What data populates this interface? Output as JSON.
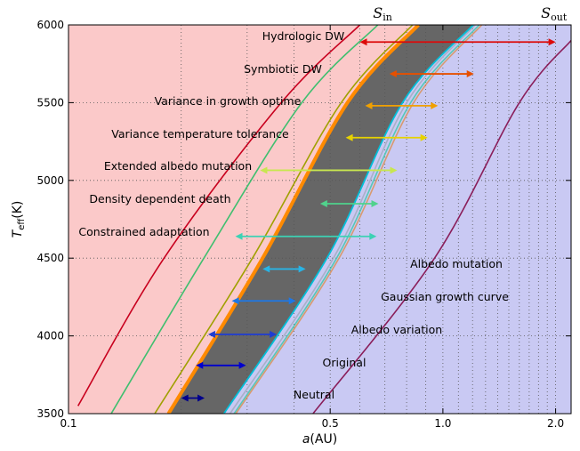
{
  "chart_data": {
    "type": "line",
    "title": "",
    "xlabel": "a(AU)",
    "ylabel": "T_eff(K)",
    "xscale": "log",
    "xlim": [
      0.1,
      2.2
    ],
    "ylim": [
      3500,
      6000
    ],
    "x_ticks": [
      {
        "value": 0.1,
        "label": "0.1"
      },
      {
        "value": 0.5,
        "label": "0.5"
      },
      {
        "value": 1.0,
        "label": "1.0"
      },
      {
        "value": 2.0,
        "label": "2.0"
      }
    ],
    "y_ticks": [
      3500,
      4000,
      4500,
      5000,
      5500,
      6000
    ],
    "grid": true,
    "grid_style": "dotted",
    "colors": {
      "inner_region": "#fbc9c9",
      "outer_region": "#c9c9f3",
      "core_band": "#666666",
      "s_in_line": "#ff8a00",
      "s_out_line": "#00bfd8"
    },
    "boundary_labels": {
      "inner": "S_in",
      "outer": "S_out"
    },
    "habitable_zone": {
      "inner_a": [
        0.185,
        0.33,
        0.556,
        0.86
      ],
      "outer_a": [
        0.26,
        0.49,
        0.78,
        1.205
      ],
      "teff": [
        3500,
        4500,
        5500,
        6000
      ]
    },
    "boundary_lines": [
      {
        "color": "#c8001e",
        "a": [
          0.106,
          0.18,
          0.37,
          0.6
        ],
        "teff": [
          3550,
          4500,
          5500,
          6000
        ]
      },
      {
        "color": "#3fbf6f",
        "a": [
          0.13,
          0.23,
          0.42,
          0.67
        ],
        "teff": [
          3500,
          4500,
          5500,
          6000
        ]
      },
      {
        "color": "#a0a000",
        "a": [
          0.17,
          0.31,
          0.535,
          0.83
        ],
        "teff": [
          3500,
          4500,
          5500,
          6000
        ]
      },
      {
        "color": "#a8b0c8",
        "a": [
          0.27,
          0.51,
          0.8,
          1.22
        ],
        "teff": [
          3500,
          4500,
          5500,
          6000
        ]
      },
      {
        "color": "#56c8b8",
        "a": [
          0.277,
          0.52,
          0.82,
          1.25
        ],
        "teff": [
          3500,
          4500,
          5500,
          6000
        ]
      },
      {
        "color": "#d89a70",
        "a": [
          0.28,
          0.528,
          0.835,
          1.27
        ],
        "teff": [
          3500,
          4500,
          5500,
          6000
        ]
      },
      {
        "color": "#8a1e5a",
        "a": [
          0.45,
          0.95,
          1.6,
          2.2
        ],
        "teff": [
          3500,
          4500,
          5500,
          5900
        ]
      }
    ],
    "series": [
      {
        "name": "Neutral",
        "color": "#00008b",
        "a": [
          0.2,
          0.231
        ],
        "teff": 3600
      },
      {
        "name": "Original",
        "color": "#0000cd",
        "a": [
          0.219,
          0.298
        ],
        "teff": 3810
      },
      {
        "name": "Albedo variation",
        "color": "#1e3cd2",
        "a": [
          0.236,
          0.36
        ],
        "teff": 4010
      },
      {
        "name": "Gaussian growth curve",
        "color": "#1e78e6",
        "a": [
          0.273,
          0.405
        ],
        "teff": 4225
      },
      {
        "name": "Albedo mutation",
        "color": "#28b4e6",
        "a": [
          0.33,
          0.43
        ],
        "teff": 4430
      },
      {
        "name": "Constrained adaptation",
        "color": "#3cd2b4",
        "a": [
          0.279,
          0.665
        ],
        "teff": 4640
      },
      {
        "name": "Density dependent death",
        "color": "#50d28c",
        "a": [
          0.47,
          0.673
        ],
        "teff": 4850
      },
      {
        "name": "Extended albedo mutation",
        "color": "#c8e650",
        "a": [
          0.325,
          0.755
        ],
        "teff": 5065
      },
      {
        "name": "Variance temperature tolerance",
        "color": "#e6d200",
        "a": [
          0.55,
          0.91
        ],
        "teff": 5275
      },
      {
        "name": "Variance in growth optime",
        "color": "#f0a000",
        "a": [
          0.62,
          0.97
        ],
        "teff": 5480
      },
      {
        "name": "Symbiotic DW",
        "color": "#e65000",
        "a": [
          0.72,
          1.21
        ],
        "teff": 5685
      },
      {
        "name": "Hydrologic DW",
        "color": "#dc0a0a",
        "a": [
          0.6,
          2.0
        ],
        "teff": 5890
      }
    ]
  },
  "labels": {
    "x_title": "a(AU)",
    "y_title": "T_eff(K)",
    "s_in_main": "S",
    "s_in_sub": "in",
    "s_out_main": "S",
    "s_out_sub": "out"
  }
}
